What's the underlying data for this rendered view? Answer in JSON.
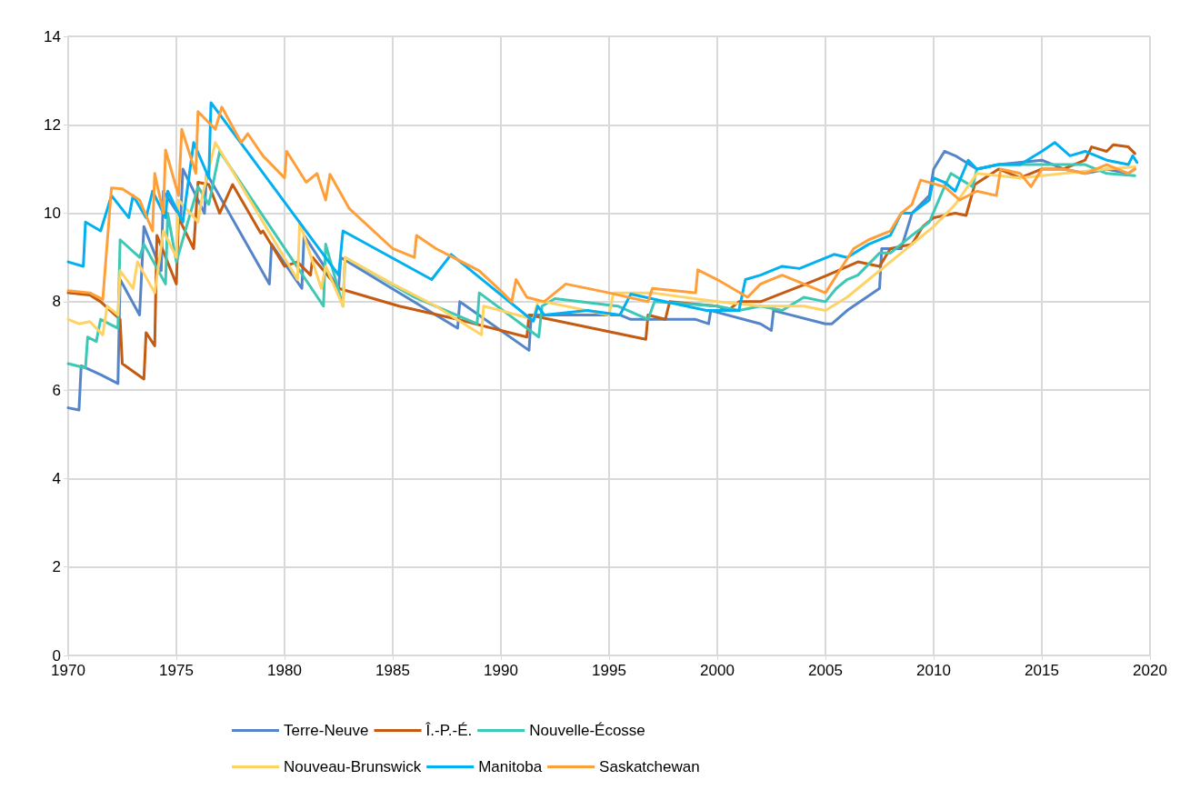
{
  "chart_data": {
    "type": "line",
    "xlim": [
      1970,
      2020
    ],
    "xticks": [
      1970,
      1975,
      1980,
      1985,
      1990,
      1995,
      2000,
      2005,
      2010,
      2015,
      2020
    ],
    "ylim": [
      0,
      14
    ],
    "yticks": [
      0,
      2,
      4,
      6,
      8,
      10,
      12,
      14
    ],
    "grid": true,
    "legend": "bottom",
    "marker": "none",
    "line_style": "solid",
    "series": [
      {
        "name": "Terre-Neuve",
        "color": "#5585c8",
        "x": [
          1970,
          1970.5,
          1970.6,
          1971.5,
          1972.3,
          1972.4,
          1973.3,
          1973.5,
          1974.3,
          1974.4,
          1975.2,
          1975.3,
          1976.3,
          1976.4,
          1979.3,
          1979.4,
          1980.8,
          1980.9,
          1982.5,
          1982.6,
          1988.0,
          1988.1,
          1991.3,
          1991.4,
          1995.5,
          1996,
          1999.0,
          1999.6,
          1999.7,
          2002,
          2002.5,
          2002.6,
          2005,
          2005.3,
          2006,
          2007.5,
          2007.6,
          2008.5,
          2009,
          2009.8,
          2010,
          2010.5,
          2011,
          2012,
          2013,
          2015,
          2016,
          2017,
          2018,
          2019,
          2019.3
        ],
        "values": [
          5.6,
          5.55,
          6.55,
          6.35,
          6.15,
          8.5,
          7.7,
          9.7,
          8.7,
          10.5,
          9.9,
          11.0,
          10.0,
          10.9,
          8.4,
          9.3,
          8.3,
          9.5,
          8.3,
          9.0,
          7.4,
          8.0,
          6.9,
          7.7,
          7.7,
          7.6,
          7.6,
          7.5,
          7.8,
          7.5,
          7.35,
          7.8,
          7.5,
          7.5,
          7.8,
          8.3,
          9.2,
          9.2,
          10.0,
          10.4,
          11.0,
          11.4,
          11.3,
          11.0,
          11.1,
          11.2,
          11.0,
          10.9,
          11.0,
          10.9,
          11.0
        ]
      },
      {
        "name": "Î.-P.-É.",
        "color": "#c55a11",
        "x": [
          1970,
          1971,
          1971.5,
          1972.4,
          1972.5,
          1973.5,
          1973.6,
          1974.0,
          1974.1,
          1975.0,
          1975.1,
          1975.8,
          1976.0,
          1976.5,
          1977.0,
          1977.6,
          1978.9,
          1979.0,
          1980.0,
          1980.6,
          1981.2,
          1981.3,
          1982.5,
          1985.3,
          1988,
          1991.2,
          1991.3,
          1996.7,
          1996.8,
          1997.6,
          1997.8,
          2000,
          2000.5,
          2001,
          2002,
          2004.1,
          2005.1,
          2006.5,
          2007.5,
          2008,
          2009,
          2009.5,
          2010,
          2011,
          2011.5,
          2011.9,
          2013,
          2014,
          2015,
          2016,
          2017,
          2017.3,
          2018,
          2018.3,
          2019,
          2019.3
        ],
        "values": [
          8.2,
          8.15,
          8.0,
          7.6,
          6.6,
          6.25,
          7.3,
          7.0,
          9.5,
          8.4,
          9.9,
          9.2,
          10.7,
          10.65,
          10.0,
          10.65,
          9.55,
          9.6,
          8.8,
          8.9,
          8.6,
          9.0,
          8.3,
          7.9,
          7.6,
          7.2,
          7.7,
          7.15,
          7.7,
          7.6,
          8.0,
          7.9,
          7.8,
          8.0,
          8.0,
          8.4,
          8.6,
          8.9,
          8.8,
          9.2,
          9.3,
          9.7,
          9.9,
          10.0,
          9.95,
          10.65,
          11.0,
          10.8,
          11.0,
          11.0,
          11.2,
          11.5,
          11.4,
          11.55,
          11.5,
          11.35
        ]
      },
      {
        "name": "Nouvelle-Écosse",
        "color": "#3cc8b4",
        "x": [
          1970,
          1970.8,
          1970.9,
          1971.3,
          1971.5,
          1972.3,
          1972.4,
          1973.3,
          1973.5,
          1974.5,
          1974.6,
          1975.0,
          1976.0,
          1976.5,
          1977.0,
          1981.8,
          1981.9,
          1982.7,
          1982.8,
          1986,
          1988.9,
          1989.0,
          1991.75,
          1991.9,
          1992.5,
          1995.4,
          1996.8,
          1997.1,
          2000,
          2001,
          2002,
          2003,
          2004,
          2005,
          2005.5,
          2006,
          2006.5,
          2007.5,
          2008,
          2009,
          2009.8,
          2010.5,
          2010.8,
          2011.8,
          2012,
          2013,
          2015,
          2017,
          2018,
          2019.3
        ],
        "values": [
          6.6,
          6.5,
          7.2,
          7.1,
          7.6,
          7.4,
          9.4,
          9.0,
          9.3,
          8.4,
          10.0,
          8.9,
          10.6,
          10.2,
          11.4,
          7.9,
          9.3,
          7.9,
          9.0,
          8.1,
          7.5,
          8.2,
          7.2,
          7.9,
          8.07,
          7.9,
          7.6,
          8.0,
          7.9,
          7.8,
          7.9,
          7.8,
          8.1,
          8.0,
          8.3,
          8.5,
          8.6,
          9.1,
          9.1,
          9.5,
          9.8,
          10.6,
          10.9,
          10.6,
          11.0,
          11.1,
          11.1,
          11.1,
          10.9,
          10.85
        ]
      },
      {
        "name": "Nouveau-Brunswick",
        "color": "#ffd266",
        "x": [
          1970,
          1970.5,
          1971,
          1971.6,
          1971.8,
          1972.3,
          1972.4,
          1973,
          1973.2,
          1974,
          1974.4,
          1975,
          1975.1,
          1976,
          1976.2,
          1976.8,
          1980.6,
          1980.7,
          1981.7,
          1981.9,
          1982.7,
          1982.8,
          1985,
          1987,
          1989.1,
          1989.2,
          1990,
          1991.5,
          1991.7,
          1992,
          1995,
          1995.2,
          1997,
          2000,
          2002,
          2004,
          2005,
          2006,
          2007,
          2008,
          2009,
          2010,
          2011,
          2012,
          2014,
          2016,
          2018,
          2019.3
        ],
        "values": [
          7.6,
          7.5,
          7.55,
          7.25,
          7.9,
          7.7,
          8.7,
          8.3,
          8.9,
          8.2,
          9.6,
          9.0,
          10.3,
          9.8,
          10.4,
          11.6,
          8.5,
          9.8,
          8.3,
          8.8,
          7.9,
          9.0,
          8.4,
          7.9,
          7.25,
          7.9,
          7.8,
          7.6,
          8.0,
          8.0,
          7.7,
          8.2,
          8.2,
          8.0,
          7.9,
          7.9,
          7.8,
          8.1,
          8.5,
          8.9,
          9.3,
          9.7,
          10.2,
          10.9,
          10.8,
          10.9,
          11.0,
          11.05
        ]
      },
      {
        "name": "Manitoba",
        "color": "#00b0f0",
        "x": [
          1970,
          1970.7,
          1970.8,
          1971.5,
          1972.0,
          1972.8,
          1973.0,
          1973.6,
          1973.9,
          1974.5,
          1974.6,
          1975.3,
          1975.8,
          1976.5,
          1976.6,
          1982.5,
          1982.7,
          1986.8,
          1987.7,
          1991.5,
          1991.7,
          1992,
          1994,
          1995.5,
          1996,
          1999.5,
          2001,
          2001.3,
          2002,
          2003,
          2003.8,
          2005.4,
          2006,
          2007,
          2008,
          2008.5,
          2009,
          2009.8,
          2010,
          2010.5,
          2011,
          2011.6,
          2012,
          2013,
          2014,
          2015,
          2015.6,
          2016.3,
          2017,
          2018,
          2019,
          2019.2,
          2019.4
        ],
        "values": [
          8.9,
          8.8,
          9.8,
          9.6,
          10.4,
          9.9,
          10.4,
          9.9,
          10.5,
          9.9,
          10.5,
          9.8,
          11.6,
          10.8,
          12.5,
          8.6,
          9.6,
          8.5,
          9.07,
          7.56,
          7.9,
          7.7,
          7.8,
          7.7,
          8.17,
          7.8,
          7.8,
          8.5,
          8.6,
          8.8,
          8.75,
          9.07,
          9.0,
          9.3,
          9.5,
          10.0,
          10.0,
          10.3,
          10.8,
          10.7,
          10.5,
          11.2,
          11.0,
          11.1,
          11.1,
          11.4,
          11.6,
          11.3,
          11.4,
          11.2,
          11.1,
          11.3,
          11.15
        ]
      },
      {
        "name": "Saskatchewan",
        "color": "#ff9f3a",
        "x": [
          1970,
          1971,
          1971.6,
          1972.0,
          1972.5,
          1973.3,
          1973.9,
          1974.0,
          1974.4,
          1974.5,
          1975.1,
          1975.25,
          1975.9,
          1976.0,
          1976.8,
          1977.1,
          1978,
          1978.3,
          1979,
          1980,
          1980.1,
          1981,
          1981.5,
          1981.9,
          1982.1,
          1983,
          1985,
          1986,
          1986.1,
          1987,
          1989,
          1990.0,
          1990.5,
          1990.7,
          1991.2,
          1992,
          1993.0,
          1995,
          1996.8,
          1997,
          1999.0,
          1999.1,
          2000,
          2001.4,
          2002,
          2003,
          2004,
          2005,
          2006.3,
          2007,
          2008,
          2008.5,
          2009,
          2009.4,
          2010.5,
          2011.2,
          2012,
          2012.9,
          2013.1,
          2014,
          2014.5,
          2015,
          2016,
          2017,
          2018,
          2019,
          2019.3
        ],
        "values": [
          8.25,
          8.2,
          8.05,
          10.57,
          10.55,
          10.3,
          9.6,
          10.9,
          10.0,
          11.43,
          10.4,
          11.9,
          10.9,
          12.3,
          11.9,
          12.4,
          11.6,
          11.8,
          11.3,
          10.8,
          11.4,
          10.7,
          10.9,
          10.3,
          10.88,
          10.1,
          9.2,
          9.0,
          9.5,
          9.2,
          8.7,
          8.24,
          8.0,
          8.5,
          8.1,
          8.0,
          8.4,
          8.2,
          8.0,
          8.3,
          8.2,
          8.72,
          8.5,
          8.1,
          8.4,
          8.6,
          8.4,
          8.2,
          9.2,
          9.4,
          9.6,
          10.0,
          10.2,
          10.75,
          10.6,
          10.3,
          10.5,
          10.4,
          11.0,
          10.9,
          10.6,
          11.0,
          11.0,
          10.9,
          11.1,
          10.9,
          11.0
        ]
      }
    ]
  }
}
